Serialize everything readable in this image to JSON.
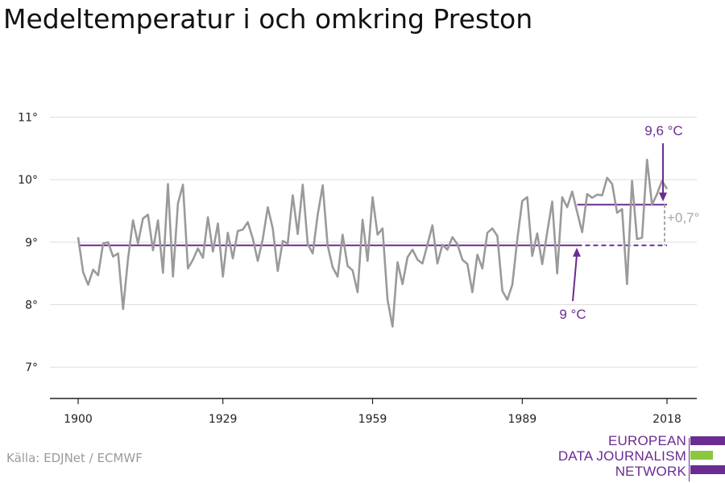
{
  "title": "Medeltemperatur i och omkring Preston",
  "source": "Källa: EDJNet / ECMWF",
  "logo": {
    "lines": [
      "EUROPEAN",
      "DATA JOURNALISM",
      "NETWORK"
    ],
    "colors": [
      "#6a2c91",
      "#8cc63f",
      "#6a2c91"
    ]
  },
  "chart_data": {
    "type": "line",
    "x": [
      1900,
      1901,
      1902,
      1903,
      1904,
      1905,
      1906,
      1907,
      1908,
      1909,
      1910,
      1911,
      1912,
      1913,
      1914,
      1915,
      1916,
      1917,
      1918,
      1919,
      1920,
      1921,
      1922,
      1923,
      1924,
      1925,
      1926,
      1927,
      1928,
      1929,
      1930,
      1931,
      1932,
      1933,
      1934,
      1935,
      1936,
      1937,
      1938,
      1939,
      1940,
      1941,
      1942,
      1943,
      1944,
      1945,
      1946,
      1947,
      1948,
      1949,
      1950,
      1951,
      1952,
      1953,
      1954,
      1955,
      1956,
      1957,
      1958,
      1959,
      1960,
      1961,
      1962,
      1963,
      1964,
      1965,
      1966,
      1967,
      1968,
      1969,
      1970,
      1971,
      1972,
      1973,
      1974,
      1975,
      1976,
      1977,
      1978,
      1979,
      1980,
      1981,
      1982,
      1983,
      1984,
      1985,
      1986,
      1987,
      1988,
      1989,
      1990,
      1991,
      1992,
      1993,
      1994,
      1995,
      1996,
      1997,
      1998,
      1999,
      2000,
      2001,
      2002,
      2003,
      2004,
      2005,
      2006,
      2007,
      2008,
      2009,
      2010,
      2011,
      2012,
      2013,
      2014,
      2015,
      2016,
      2017,
      2018
    ],
    "series": [
      {
        "values": [
          9.08,
          8.52,
          8.32,
          8.56,
          8.47,
          8.98,
          9.0,
          8.77,
          8.82,
          7.93,
          8.73,
          9.35,
          8.98,
          9.38,
          9.44,
          8.87,
          9.35,
          8.51,
          9.93,
          8.45,
          9.62,
          9.92,
          8.58,
          8.72,
          8.9,
          8.75,
          9.4,
          8.85,
          9.3,
          8.45,
          9.15,
          8.74,
          9.18,
          9.2,
          9.32,
          9.06,
          8.7,
          9.05,
          9.56,
          9.22,
          8.54,
          9.02,
          8.98,
          9.75,
          9.13,
          9.92,
          8.97,
          8.82,
          9.44,
          9.91,
          8.95,
          8.6,
          8.45,
          9.12,
          8.62,
          8.55,
          8.2,
          9.36,
          8.7,
          9.72,
          9.12,
          9.22,
          8.08,
          7.65,
          8.68,
          8.33,
          8.76,
          8.88,
          8.72,
          8.66,
          8.96,
          9.27,
          8.66,
          8.96,
          8.88,
          9.08,
          8.97,
          8.72,
          8.65,
          8.2,
          8.8,
          8.58,
          9.15,
          9.22,
          9.1,
          8.22,
          8.08,
          8.32,
          9.05,
          9.66,
          9.72,
          8.78,
          9.14,
          8.65,
          9.16,
          9.65,
          8.5,
          9.72,
          9.56,
          9.81,
          9.48,
          9.16,
          9.77,
          9.71,
          9.76,
          9.75,
          10.03,
          9.93,
          9.47,
          9.53,
          8.33,
          9.98,
          9.05,
          9.07,
          10.32,
          9.6,
          9.77,
          9.98,
          9.85
        ]
      }
    ],
    "ylim": [
      6.5,
      11.2
    ],
    "y_ticks": [
      7,
      8,
      9,
      10,
      11
    ],
    "y_tick_labels": [
      "7°",
      "8°",
      "9°",
      "10°",
      "11°"
    ],
    "x_ticks": [
      1900,
      1929,
      1959,
      1989,
      2018
    ],
    "x_tick_labels": [
      "1900",
      "1929",
      "1959",
      "1989",
      "2018"
    ],
    "grid": true,
    "reference_lines": [
      {
        "value": 8.95,
        "from": 1900,
        "to": 2018,
        "solid_until": 2000,
        "color": "#6a2c91"
      },
      {
        "value": 9.6,
        "from": 2000,
        "to": 2018,
        "color": "#6a2c91"
      }
    ],
    "annotations": [
      {
        "text": "9 °C",
        "color": "#6a2c91"
      },
      {
        "text": "9,6 °C",
        "color": "#6a2c91"
      },
      {
        "text": "+0,7°",
        "color": "#a6a6a6"
      }
    ],
    "colors": {
      "line": "#9a9a9a",
      "accent": "#6a2c91",
      "grid": "#dddddd",
      "axis": "#222222"
    }
  }
}
